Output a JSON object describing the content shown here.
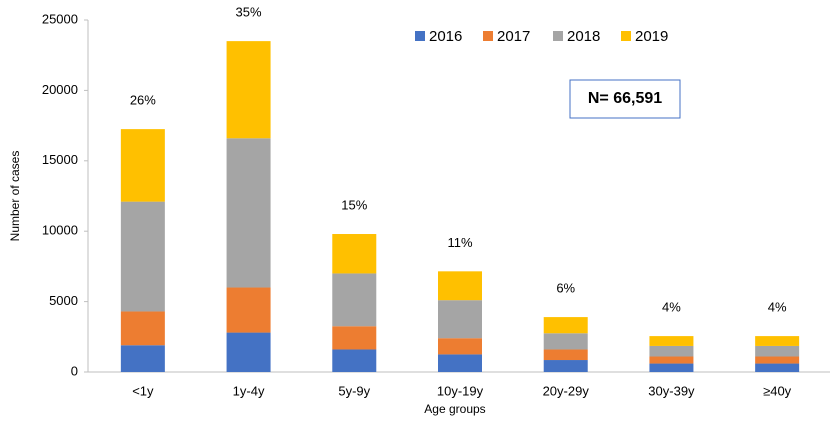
{
  "chart_data": {
    "type": "stacked_bar",
    "categories": [
      "<1y",
      "1y-4y",
      "5y-9y",
      "10y-19y",
      "20y-29y",
      "30y-39y",
      "≥40y"
    ],
    "series": [
      {
        "name": "2016",
        "color": "#4472c4",
        "values": [
          1900,
          2800,
          1600,
          1250,
          850,
          600,
          600
        ]
      },
      {
        "name": "2017",
        "color": "#ed7d31",
        "values": [
          2400,
          3200,
          1650,
          1150,
          750,
          500,
          500
        ]
      },
      {
        "name": "2018",
        "color": "#a5a5a5",
        "values": [
          7800,
          10600,
          3750,
          2700,
          1150,
          750,
          750
        ]
      },
      {
        "name": "2019",
        "color": "#ffc000",
        "values": [
          5150,
          6900,
          2800,
          2050,
          1150,
          700,
          700
        ]
      }
    ],
    "percent_labels": [
      "26%",
      "35%",
      "15%",
      "11%",
      "6%",
      "4%",
      "4%"
    ],
    "annotation": "N= 66,591",
    "ylabel": "Number of cases",
    "xlabel": "Age groups",
    "ylim": [
      0,
      25000
    ],
    "yticks": [
      0,
      5000,
      10000,
      15000,
      20000,
      25000
    ],
    "legend": "top"
  }
}
